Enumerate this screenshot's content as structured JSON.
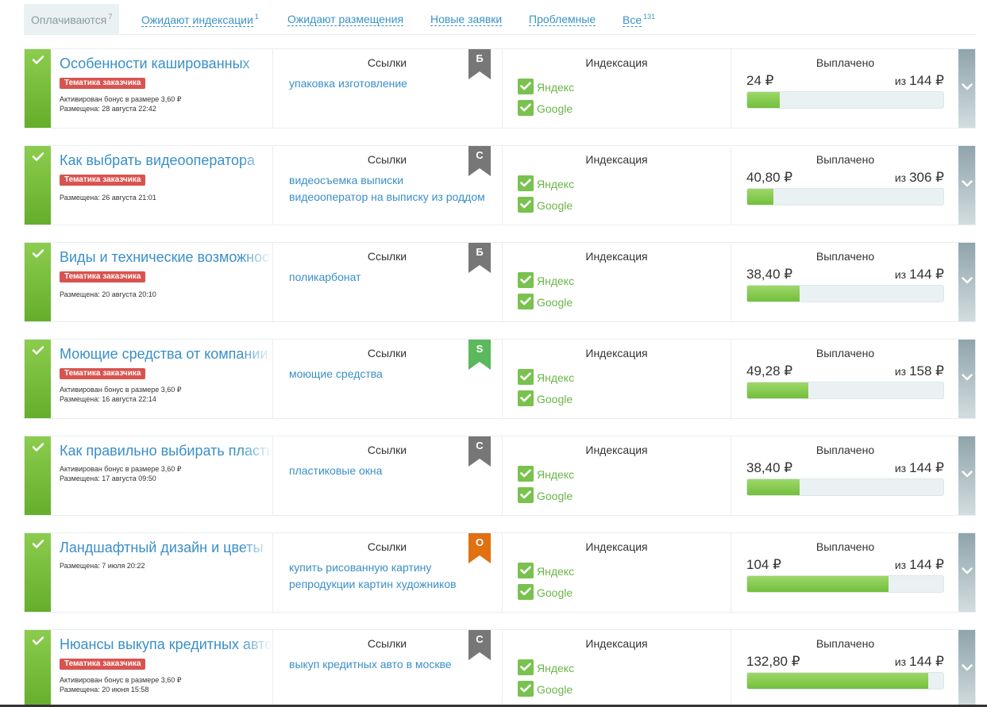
{
  "tabs": [
    {
      "label": "Оплачиваются",
      "count": "7",
      "active": true
    },
    {
      "label": "Ожидают индексации",
      "count": "1",
      "active": false
    },
    {
      "label": "Ожидают размещения",
      "count": "",
      "active": false
    },
    {
      "label": "Новые заявки",
      "count": "",
      "active": false
    },
    {
      "label": "Проблемные",
      "count": "",
      "active": false
    },
    {
      "label": "Все",
      "count": "131",
      "active": false
    }
  ],
  "labels": {
    "links_header": "Ссылки",
    "indexing_header": "Индексация",
    "paid_header": "Выплачено",
    "of_prefix": "из",
    "yandex": "Яндекс",
    "google": "Google"
  },
  "colors": {
    "ribbon_gray": "#777777",
    "ribbon_green": "#5cb85c",
    "ribbon_orange": "#e07010",
    "badge_red": "#d9534f",
    "link_blue": "#3a8fc7",
    "check_green": "#6ab547"
  },
  "orders": [
    {
      "title": "Особенности кашированных",
      "badge": "Тематика заказчика",
      "meta": [
        "Активирован бонус в размере 3,60 ₽",
        "Размещена: 28 августа 22:42"
      ],
      "links": [
        "упаковка изготовление"
      ],
      "ribbon": {
        "letter": "Б",
        "color": "gray"
      },
      "indexing": [
        "Яндекс",
        "Google"
      ],
      "paid": "24 ₽",
      "total": "144 ₽",
      "paid_fraction": 0.167
    },
    {
      "title": "Как выбрать видеооператора",
      "badge": "Тематика заказчика",
      "meta": [
        "Размещена: 26 августа 21:01"
      ],
      "links": [
        "видеосъемка выписки",
        "видеооператор на выписку из роддома"
      ],
      "ribbon": {
        "letter": "С",
        "color": "gray"
      },
      "indexing": [
        "Яндекс",
        "Google"
      ],
      "paid": "40,80 ₽",
      "total": "306 ₽",
      "paid_fraction": 0.133
    },
    {
      "title": "Виды и технические возможности",
      "badge": "Тематика заказчика",
      "meta": [
        "Размещена: 20 августа 20:10"
      ],
      "links": [
        "поликарбонат"
      ],
      "ribbon": {
        "letter": "Б",
        "color": "gray"
      },
      "indexing": [
        "Яндекс",
        "Google"
      ],
      "paid": "38,40 ₽",
      "total": "144 ₽",
      "paid_fraction": 0.267
    },
    {
      "title": "Моющие средства от компании",
      "badge": "Тематика заказчика",
      "meta": [
        "Активирован бонус в размере 3,60 ₽",
        "Размещена: 16 августа 22:14"
      ],
      "links": [
        "моющие средства"
      ],
      "ribbon": {
        "letter": "S",
        "color": "green"
      },
      "indexing": [
        "Яндекс",
        "Google"
      ],
      "paid": "49,28 ₽",
      "total": "158 ₽",
      "paid_fraction": 0.312
    },
    {
      "title": "Как правильно выбирать пластиковые",
      "badge": "",
      "meta": [
        "Активирован бонус в размере 3,60 ₽",
        "Размещена: 17 августа 09:50"
      ],
      "links": [
        "пластиковые окна"
      ],
      "ribbon": {
        "letter": "С",
        "color": "gray"
      },
      "indexing": [
        "Яндекс",
        "Google"
      ],
      "paid": "38,40 ₽",
      "total": "144 ₽",
      "paid_fraction": 0.267
    },
    {
      "title": "Ландшафтный дизайн и цветы",
      "badge": "",
      "meta": [
        "Размещена: 7 июля 20:22"
      ],
      "links": [
        "купить рисованную картину",
        "репродукции картин художников"
      ],
      "ribbon": {
        "letter": "О",
        "color": "orange"
      },
      "indexing": [
        "Яндекс",
        "Google"
      ],
      "paid": "104 ₽",
      "total": "144 ₽",
      "paid_fraction": 0.722
    },
    {
      "title": "Нюансы выкупа кредитных авто",
      "badge": "Тематика заказчика",
      "meta": [
        "Активирован бонус в размере 3,60 ₽",
        "Размещена: 20 июня 15:58"
      ],
      "links": [
        "выкуп кредитных авто в москве"
      ],
      "ribbon": {
        "letter": "С",
        "color": "gray"
      },
      "indexing": [
        "Яндекс",
        "Google"
      ],
      "paid": "132,80 ₽",
      "total": "144 ₽",
      "paid_fraction": 0.922
    }
  ]
}
